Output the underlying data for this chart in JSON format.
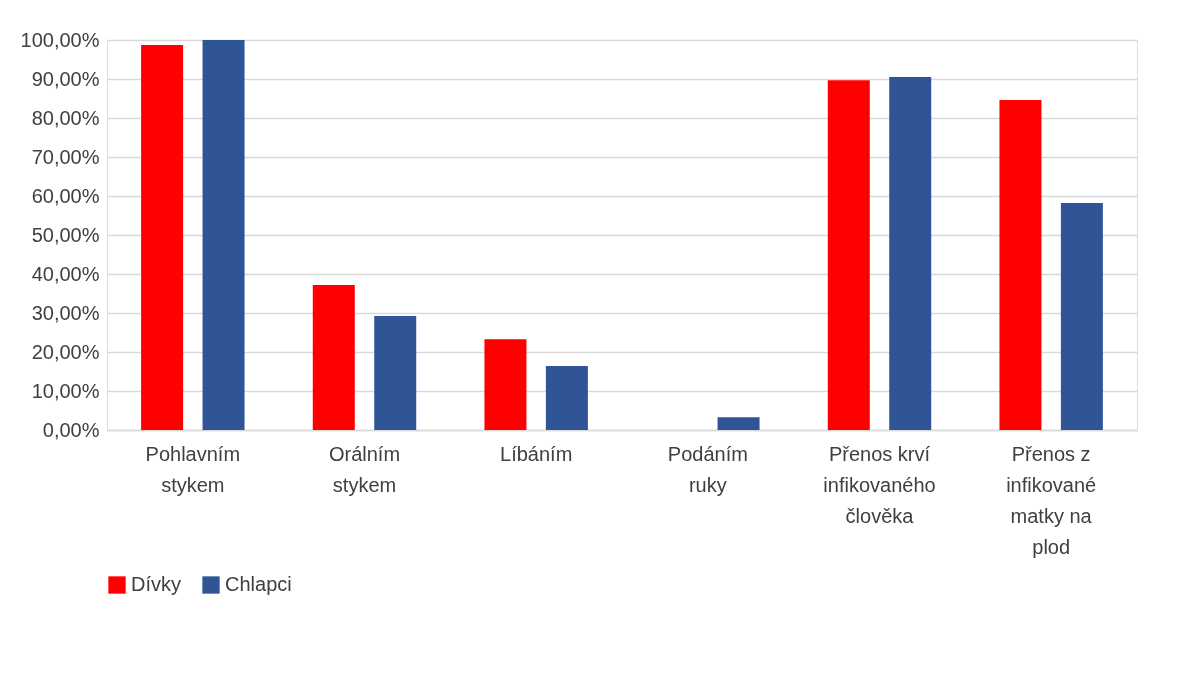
{
  "chart_data": {
    "type": "bar",
    "categories": [
      "Pohlavním stykem",
      "Orálním stykem",
      "Líbáním",
      "Podáním ruky",
      "Přenos krví infikovaného člověka",
      "Přenos z infikované matky na plod"
    ],
    "series": [
      {
        "name": "Dívky",
        "color": "#ff0000",
        "values": [
          98.7,
          37.2,
          23.3,
          0,
          89.7,
          84.6
        ]
      },
      {
        "name": "Chlapci",
        "color": "#2f5597",
        "values": [
          100,
          29.2,
          16.4,
          3.3,
          90.5,
          58.2
        ]
      }
    ],
    "ylim": [
      0,
      100
    ],
    "yticks": [
      {
        "value": 0,
        "label": "0,00%"
      },
      {
        "value": 10,
        "label": "10,00%"
      },
      {
        "value": 20,
        "label": "20,00%"
      },
      {
        "value": 30,
        "label": "30,00%"
      },
      {
        "value": 40,
        "label": "40,00%"
      },
      {
        "value": 50,
        "label": "50,00%"
      },
      {
        "value": 60,
        "label": "60,00%"
      },
      {
        "value": 70,
        "label": "70,00%"
      },
      {
        "value": 80,
        "label": "80,00%"
      },
      {
        "value": 90,
        "label": "90,00%"
      },
      {
        "value": 100,
        "label": "100,00%"
      }
    ],
    "grid": "y",
    "legend": "bottom"
  }
}
